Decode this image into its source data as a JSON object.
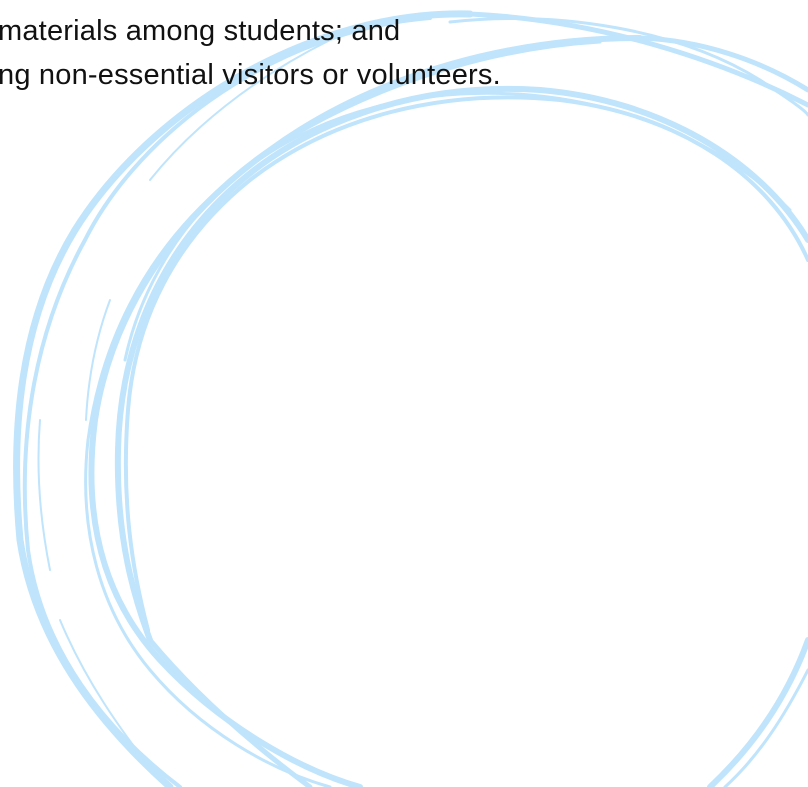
{
  "document": {
    "lines": [
      "materials among students; and",
      "ng non-essential visitors or volunteers."
    ]
  },
  "decoration": {
    "scribble_color": "#bfe4fb",
    "icon": "hand-drawn-circle-scribble"
  }
}
